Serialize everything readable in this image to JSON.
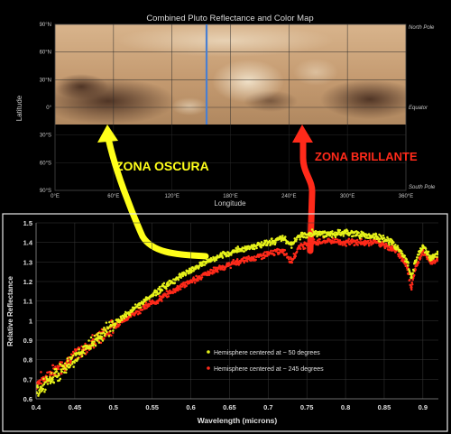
{
  "chart_data": [
    {
      "type": "heatmap",
      "title": "Combined Pluto Reflectance and Color Map",
      "xlabel": "Longitude",
      "ylabel": "Latitude",
      "x_ticks": [
        "0°E",
        "60°E",
        "120°E",
        "180°E",
        "240°E",
        "300°E",
        "360°E"
      ],
      "y_ticks": [
        "90°N",
        "60°N",
        "30°N",
        "0°",
        "30°S",
        "60°S",
        "90°S"
      ],
      "reference_labels": [
        "North Pole",
        "Equator",
        "South Pole"
      ],
      "xlim": [
        0,
        360
      ],
      "ylim": [
        -90,
        90
      ],
      "annotations": [
        {
          "text": "ZONA OSCURA",
          "color": "#ffff1a",
          "longitude": 50
        },
        {
          "text": "ZONA BRILLANTE",
          "color": "#ff2a1a",
          "longitude": 245
        }
      ],
      "colors": {
        "surface": "#c9a27a",
        "dark_region": "#5e4030",
        "bright_region": "#e4cfb2",
        "marker_line": "#4a7fd0"
      }
    },
    {
      "type": "scatter",
      "xlabel": "Wavelength (microns)",
      "ylabel": "Relative Reflectance",
      "xlim": [
        0.4,
        0.92
      ],
      "ylim": [
        0.6,
        1.5
      ],
      "x_ticks": [
        "0.4",
        "0.45",
        "0.5",
        "0.55",
        "0.6",
        "0.65",
        "0.7",
        "0.75",
        "0.8",
        "0.85",
        "0.9"
      ],
      "y_ticks": [
        "0.6",
        "0.7",
        "0.8",
        "0.9",
        "1",
        "1.1",
        "1.2",
        "1.3",
        "1.4",
        "1.5"
      ],
      "legend_position": "lower-right",
      "series": [
        {
          "name": "Hemisphere centered at ~ 50 degrees",
          "color": "#e6f21a",
          "x": [
            0.4,
            0.42,
            0.44,
            0.46,
            0.48,
            0.5,
            0.52,
            0.54,
            0.56,
            0.58,
            0.6,
            0.62,
            0.64,
            0.66,
            0.68,
            0.7,
            0.72,
            0.73,
            0.74,
            0.76,
            0.78,
            0.8,
            0.82,
            0.84,
            0.86,
            0.87,
            0.88,
            0.885,
            0.89,
            0.9,
            0.91,
            0.92
          ],
          "y": [
            0.63,
            0.7,
            0.77,
            0.84,
            0.91,
            0.98,
            1.04,
            1.1,
            1.16,
            1.21,
            1.26,
            1.3,
            1.33,
            1.36,
            1.38,
            1.4,
            1.42,
            1.39,
            1.43,
            1.45,
            1.44,
            1.45,
            1.44,
            1.43,
            1.4,
            1.36,
            1.3,
            1.22,
            1.3,
            1.38,
            1.32,
            1.34
          ]
        },
        {
          "name": "Hemisphere centered at ~ 245 degrees",
          "color": "#ff2a1a",
          "x": [
            0.4,
            0.42,
            0.44,
            0.46,
            0.48,
            0.5,
            0.52,
            0.54,
            0.56,
            0.58,
            0.6,
            0.62,
            0.64,
            0.66,
            0.68,
            0.7,
            0.72,
            0.73,
            0.74,
            0.76,
            0.78,
            0.8,
            0.82,
            0.84,
            0.86,
            0.87,
            0.88,
            0.885,
            0.89,
            0.9,
            0.91,
            0.92
          ],
          "y": [
            0.68,
            0.73,
            0.79,
            0.85,
            0.91,
            0.97,
            1.02,
            1.07,
            1.11,
            1.16,
            1.2,
            1.24,
            1.27,
            1.3,
            1.32,
            1.34,
            1.36,
            1.3,
            1.38,
            1.4,
            1.41,
            1.4,
            1.4,
            1.4,
            1.37,
            1.34,
            1.27,
            1.17,
            1.26,
            1.36,
            1.3,
            1.32
          ]
        }
      ]
    }
  ]
}
